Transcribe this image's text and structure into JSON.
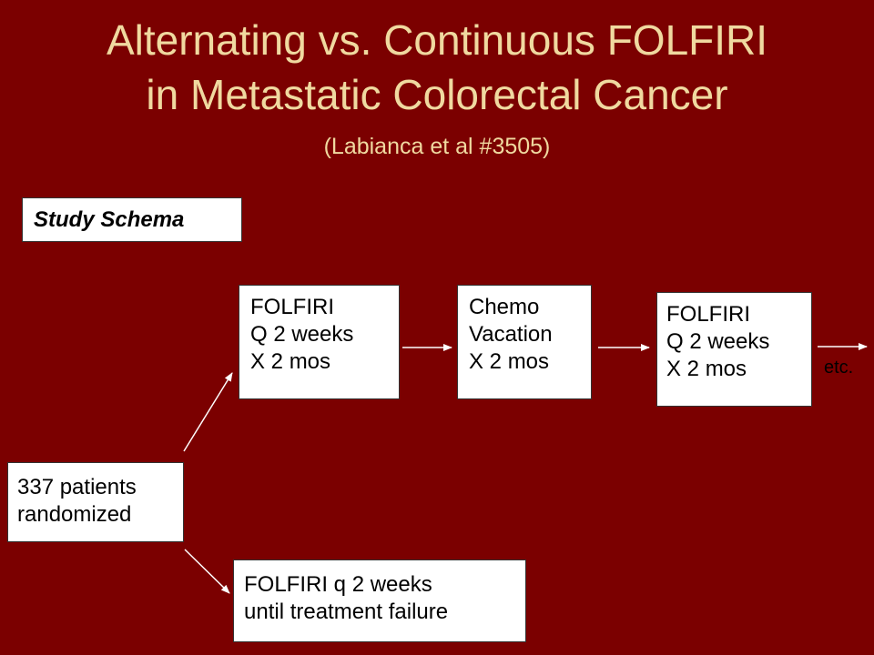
{
  "slide": {
    "title_line1": "Alternating vs. Continuous FOLFIRI",
    "title_line2": "in Metastatic Colorectal Cancer",
    "subtitle": "(Labianca et al #3505)",
    "schema_label": "Study Schema"
  },
  "boxes": {
    "folfiri_arm1": [
      "FOLFIRI",
      "Q 2 weeks",
      "X 2 mos"
    ],
    "vacation": [
      "Chemo",
      "Vacation",
      "X 2 mos"
    ],
    "folfiri_arm2": [
      "FOLFIRI",
      "Q 2 weeks",
      "X 2 mos"
    ],
    "patients": [
      "337 patients",
      "randomized"
    ],
    "continuous": [
      "FOLFIRI q 2 weeks",
      "until treatment failure"
    ]
  },
  "etc": "etc.",
  "colors": {
    "background": "#7b0000",
    "title": "#f0d9a0",
    "box_fill": "#ffffff",
    "arrow": "#ffffff"
  }
}
